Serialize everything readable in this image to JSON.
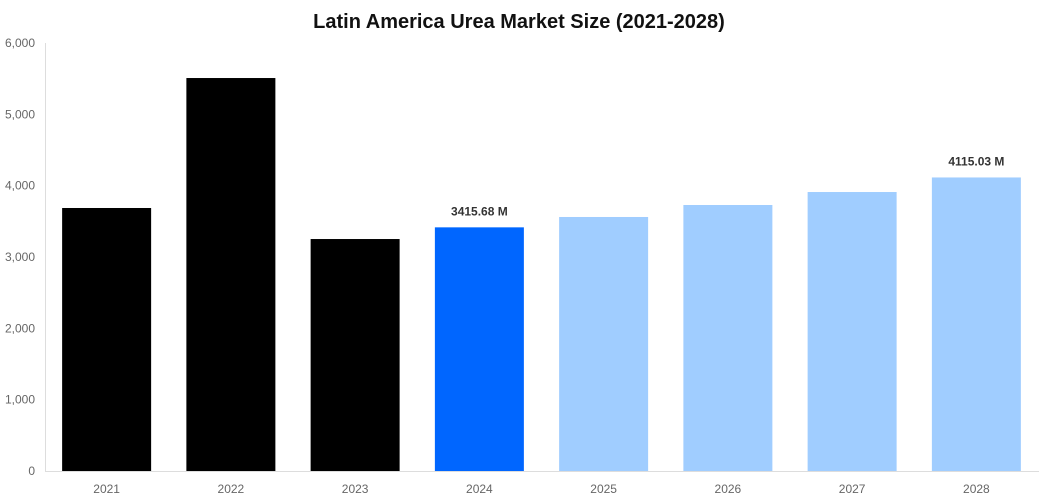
{
  "chart_data": {
    "type": "bar",
    "title": "Latin America Urea Market Size (2021-2028)",
    "xlabel": "",
    "ylabel": "",
    "categories": [
      "2021",
      "2022",
      "2023",
      "2024",
      "2025",
      "2026",
      "2027",
      "2028"
    ],
    "values": [
      3687,
      5509,
      3252,
      3415.68,
      3561,
      3729,
      3911,
      4115.03
    ],
    "data_labels": {
      "3": "3415.68 M",
      "7": "4115.03 M"
    },
    "ylim": [
      0,
      6000
    ],
    "yticks": [
      0,
      1000,
      2000,
      3000,
      4000,
      5000,
      6000
    ],
    "ytick_labels": [
      "0",
      "1,000",
      "2,000",
      "3,000",
      "4,000",
      "5,000",
      "6,000"
    ],
    "grid": false,
    "legend": "none",
    "colors": [
      "#000000",
      "#000000",
      "#000000",
      "#0066ff",
      "#a0cdff",
      "#a0cdff",
      "#a0cdff",
      "#a0cdff"
    ]
  }
}
